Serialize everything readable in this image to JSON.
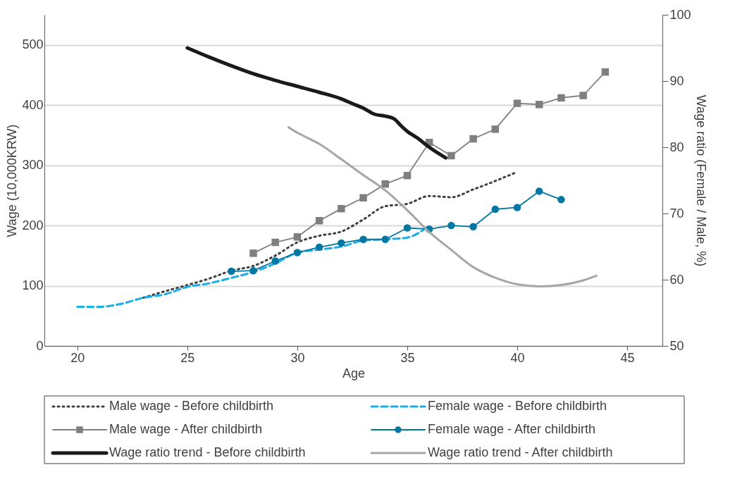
{
  "chart_data": {
    "type": "line",
    "xlabel": "Age",
    "ylabel": "Wage (10,000KRW)",
    "y2label": "Wage ratio (Female / Male, %)",
    "xlim": [
      18.5,
      46.6
    ],
    "xticks": [
      20,
      25,
      30,
      35,
      40,
      45
    ],
    "ylim": [
      0,
      550
    ],
    "yticks": [
      0,
      100,
      200,
      300,
      400,
      500
    ],
    "y2lim": [
      50,
      100
    ],
    "y2ticks": [
      50,
      60,
      70,
      80,
      90,
      100
    ],
    "grid": "y",
    "legend": "bottom",
    "series": [
      {
        "name": "Male wage - Before childbirth",
        "color": "#404040",
        "line_style": "dotted",
        "marker": "none",
        "x": [
          23,
          24,
          25,
          26,
          27,
          28,
          29,
          30,
          31,
          32,
          33,
          34,
          35,
          36,
          37,
          38,
          39,
          40
        ],
        "values": [
          80,
          91,
          101,
          112,
          125,
          133,
          150,
          172,
          183,
          190,
          210,
          232,
          236,
          249,
          247,
          260,
          274,
          289
        ]
      },
      {
        "name": "Female wage - Before childbirth",
        "color": "#1aaee8",
        "line_style": "dashed",
        "marker": "none",
        "x": [
          20,
          21,
          22,
          23,
          24,
          25,
          26,
          27,
          28,
          29,
          30,
          31,
          32,
          33,
          34,
          35,
          36
        ],
        "values": [
          65,
          65,
          70,
          80,
          86,
          98,
          104,
          113,
          123,
          137,
          155,
          160,
          165,
          175,
          177,
          180,
          200
        ]
      },
      {
        "name": "Male wage - After childbirth",
        "color": "#7f7f7f",
        "line_style": "solid",
        "marker": "square",
        "x": [
          28,
          29,
          30,
          31,
          32,
          33,
          34,
          35,
          36,
          37,
          38,
          39,
          40,
          41,
          42,
          43,
          44
        ],
        "values": [
          154,
          172,
          181,
          208,
          228,
          246,
          269,
          283,
          338,
          316,
          344,
          360,
          403,
          401,
          412,
          416,
          455
        ]
      },
      {
        "name": "Female wage - After childbirth",
        "color": "#0077a3",
        "line_style": "solid",
        "marker": "circle",
        "x": [
          27,
          28,
          29,
          30,
          31,
          32,
          33,
          34,
          35,
          36,
          37,
          38,
          39,
          40,
          41,
          42
        ],
        "values": [
          124,
          125,
          141,
          155,
          164,
          171,
          177,
          177,
          196,
          194,
          200,
          198,
          227,
          230,
          257,
          243
        ]
      },
      {
        "name": "Wage ratio trend - Before childbirth",
        "color": "#1a1a1a",
        "line_style": "solid",
        "marker": "none",
        "axis": "y2",
        "x": [
          25,
          26,
          27,
          28,
          29,
          30,
          31,
          32,
          32.5,
          33,
          33.5,
          34,
          34.4,
          34.7,
          35,
          35.5,
          36,
          36.75
        ],
        "values": [
          95.0,
          93.6,
          92.3,
          91.1,
          90.1,
          89.2,
          88.3,
          87.3,
          86.6,
          85.9,
          85.0,
          84.7,
          84.3,
          83.3,
          82.4,
          81.3,
          80.0,
          78.4
        ]
      },
      {
        "name": "Wage ratio trend - After childbirth",
        "color": "#a6a6a6",
        "line_style": "solid",
        "marker": "none",
        "axis": "y2",
        "x": [
          29.6,
          30,
          31,
          32,
          33,
          34,
          35,
          36,
          37,
          38,
          39,
          40,
          41,
          42,
          43,
          43.6
        ],
        "values": [
          83.0,
          82.2,
          80.5,
          78.2,
          75.8,
          73.5,
          70.5,
          67.2,
          64.5,
          61.9,
          60.3,
          59.3,
          59.0,
          59.2,
          59.9,
          60.6
        ]
      }
    ]
  }
}
